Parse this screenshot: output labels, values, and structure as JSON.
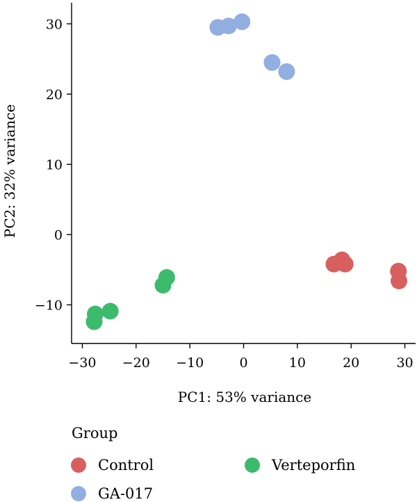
{
  "chart_data": {
    "type": "scatter",
    "title": "",
    "xlabel": "PC1: 53% variance",
    "ylabel": "PC2: 32% variance",
    "xlim": [
      -32,
      32
    ],
    "ylim": [
      -15.5,
      33
    ],
    "xticks": [
      -30,
      -20,
      -10,
      0,
      10,
      20,
      30
    ],
    "yticks": [
      -10,
      0,
      10,
      20,
      30
    ],
    "xtick_labels": [
      "−30",
      "−20",
      "−10",
      "0",
      "10",
      "20",
      "30"
    ],
    "ytick_labels": [
      "−10",
      "0",
      "10",
      "20",
      "30"
    ],
    "grid": false,
    "legend": {
      "title": "Group",
      "placement": "bottom"
    },
    "series": [
      {
        "name": "Control",
        "color": "#d95f5f",
        "points": [
          {
            "x": 16.8,
            "y": -4.2
          },
          {
            "x": 18.3,
            "y": -3.6
          },
          {
            "x": 18.9,
            "y": -4.2
          },
          {
            "x": 28.8,
            "y": -5.2
          },
          {
            "x": 28.9,
            "y": -6.6
          }
        ]
      },
      {
        "name": "GA-017",
        "color": "#93aee0",
        "points": [
          {
            "x": -4.8,
            "y": 29.5
          },
          {
            "x": -2.8,
            "y": 29.7
          },
          {
            "x": -0.3,
            "y": 30.3
          },
          {
            "x": 5.3,
            "y": 24.5
          },
          {
            "x": 8.0,
            "y": 23.2
          }
        ]
      },
      {
        "name": "Verteporfin",
        "color": "#3dbb6d",
        "points": [
          {
            "x": -14.3,
            "y": -6.1
          },
          {
            "x": -15.0,
            "y": -7.2
          },
          {
            "x": -24.8,
            "y": -10.9
          },
          {
            "x": -27.6,
            "y": -11.3
          },
          {
            "x": -27.8,
            "y": -12.4
          }
        ]
      }
    ]
  }
}
